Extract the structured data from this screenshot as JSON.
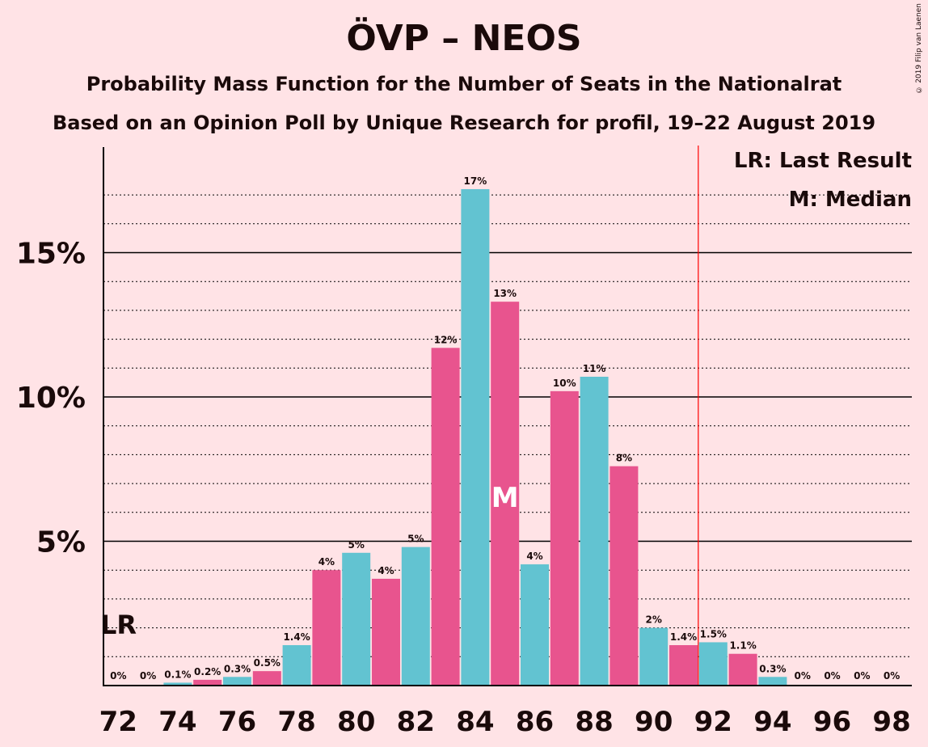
{
  "title": "ÖVP – NEOS",
  "subtitle1": "Probability Mass Function for the Number of Seats in the Nationalrat",
  "subtitle2": "Based on an Opinion Poll by Unique Research for profil, 19–22 August 2019",
  "copyright": "© 2019 Filip van Laenen",
  "legend": {
    "lr": "LR: Last Result",
    "m": "M: Median"
  },
  "markers": {
    "lr_label": "LR",
    "median_label": "M"
  },
  "colors": {
    "pink": "#e8548e",
    "blue": "#62c3d1",
    "majority_line": "#ff0000",
    "background": "#ffe3e6"
  },
  "chart_data": {
    "type": "bar",
    "categories": [
      72,
      73,
      74,
      75,
      76,
      77,
      78,
      79,
      80,
      81,
      82,
      83,
      84,
      85,
      86,
      87,
      88,
      89,
      90,
      91,
      92,
      93,
      94,
      95,
      96,
      97,
      98
    ],
    "values": [
      0,
      0,
      0.1,
      0.2,
      0.3,
      0.5,
      1.4,
      4,
      4.6,
      3.7,
      4.8,
      11.7,
      17.2,
      13.3,
      4.2,
      10.2,
      10.7,
      7.6,
      2,
      1.4,
      1.5,
      1.1,
      0.3,
      0,
      0,
      0,
      0
    ],
    "labels": [
      "0%",
      "0%",
      "0.1%",
      "0.2%",
      "0.3%",
      "0.5%",
      "1.4%",
      "4%",
      "5%",
      "4%",
      "5%",
      "12%",
      "17%",
      "13%",
      "4%",
      "10%",
      "11%",
      "8%",
      "2%",
      "1.4%",
      "1.5%",
      "1.1%",
      "0.3%",
      "0%",
      "0%",
      "0%",
      "0%"
    ],
    "x_tick_labels": [
      "72",
      "74",
      "76",
      "78",
      "80",
      "82",
      "84",
      "86",
      "88",
      "90",
      "92",
      "94",
      "96",
      "98"
    ],
    "y_tick_labels": [
      "5%",
      "10%",
      "15%"
    ],
    "y_ticks": [
      5,
      10,
      15
    ],
    "ylim": [
      0,
      18.5
    ],
    "last_result_seat": 72,
    "median_seat": 85,
    "majority_seat": 92,
    "grid": true
  }
}
